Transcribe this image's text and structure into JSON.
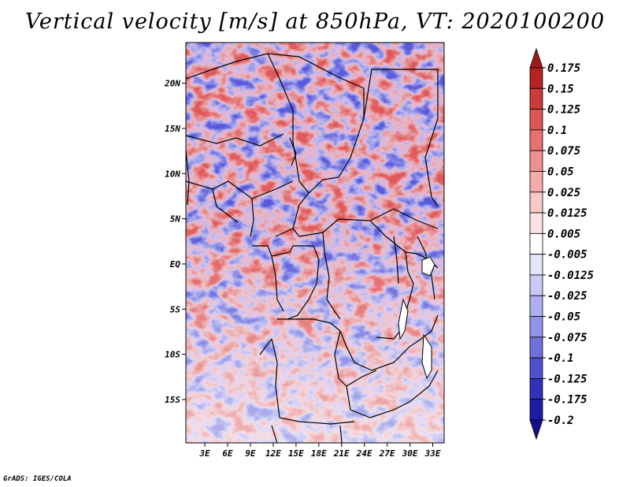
{
  "title": "Vertical velocity [m/s] at 850hPa, VT: 2020100200",
  "credit": "GrADS: IGES/COLA",
  "map": {
    "lat_labels": [
      {
        "label": "20N",
        "value": 20
      },
      {
        "label": "15N",
        "value": 15
      },
      {
        "label": "10N",
        "value": 10
      },
      {
        "label": "5N",
        "value": 5
      },
      {
        "label": "EQ",
        "value": 0
      },
      {
        "label": "5S",
        "value": -5
      },
      {
        "label": "10S",
        "value": -10
      },
      {
        "label": "15S",
        "value": -15
      }
    ],
    "lon_labels": [
      {
        "label": "3E",
        "value": 3
      },
      {
        "label": "6E",
        "value": 6
      },
      {
        "label": "9E",
        "value": 9
      },
      {
        "label": "12E",
        "value": 12
      },
      {
        "label": "15E",
        "value": 15
      },
      {
        "label": "18E",
        "value": 18
      },
      {
        "label": "21E",
        "value": 21
      },
      {
        "label": "24E",
        "value": 24
      },
      {
        "label": "27E",
        "value": 27
      },
      {
        "label": "30E",
        "value": 30
      },
      {
        "label": "33E",
        "value": 33
      }
    ],
    "lon_range": [
      0.5,
      34.5
    ],
    "lat_range": [
      -19.8,
      24.5
    ]
  },
  "colorbar": {
    "labels": [
      "0.175",
      "0.15",
      "0.125",
      "0.1",
      "0.075",
      "0.05",
      "0.025",
      "0.0125",
      "0.005",
      "-0.005",
      "-0.0125",
      "-0.025",
      "-0.05",
      "-0.075",
      "-0.1",
      "-0.125",
      "-0.175",
      "-0.2"
    ],
    "colors": [
      "#a11a1a",
      "#b82222",
      "#cc3a3a",
      "#dd5555",
      "#e77070",
      "#ef8f8f",
      "#f5abab",
      "#fac8c8",
      "#fde4e4",
      "#ffffff",
      "#e4e4fb",
      "#c9c9f5",
      "#aeaef0",
      "#9292ea",
      "#7070dd",
      "#5050cc",
      "#3030b8",
      "#1c1ca4",
      "#140f8c"
    ]
  }
}
